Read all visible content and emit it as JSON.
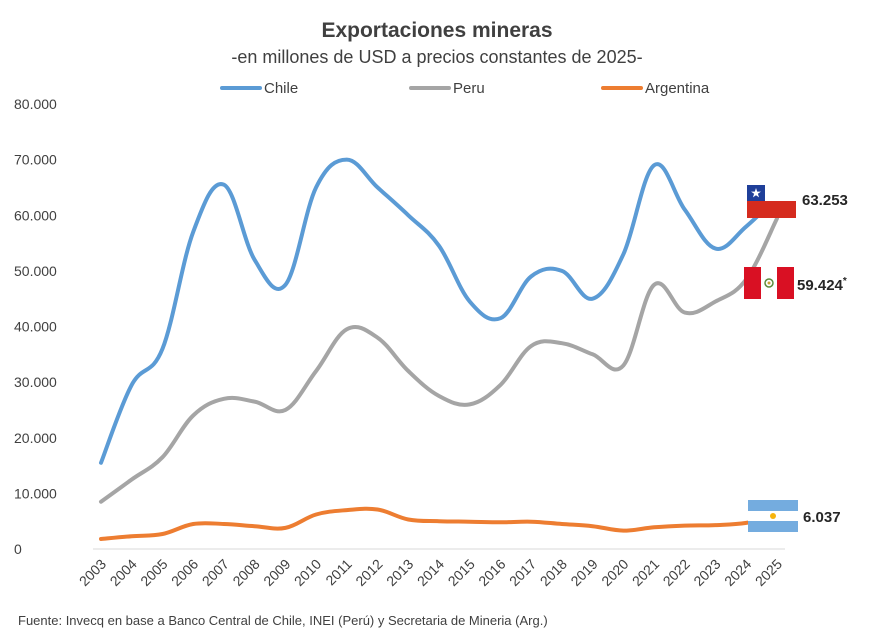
{
  "chart_data": {
    "type": "line",
    "title": "Exportaciones mineras",
    "subtitle": "-en millones de USD a precios constantes de 2025-",
    "x": [
      "2003",
      "2004",
      "2005",
      "2006",
      "2007",
      "2008",
      "2009",
      "2010",
      "2011",
      "2012",
      "2013",
      "2014",
      "2015",
      "2016",
      "2017",
      "2018",
      "2019",
      "2020",
      "2021",
      "2022",
      "2023",
      "2024",
      "2025"
    ],
    "ylim": [
      0,
      80000
    ],
    "yticks": [
      "0",
      "10.000",
      "20.000",
      "30.000",
      "40.000",
      "50.000",
      "60.000",
      "70.000",
      "80.000"
    ],
    "series": [
      {
        "name": "Chile",
        "color": "#5b9bd5",
        "values": [
          15500,
          29500,
          36000,
          57000,
          65500,
          52000,
          47500,
          65000,
          70000,
          65000,
          60000,
          54500,
          44500,
          41500,
          49000,
          50000,
          45000,
          53000,
          69000,
          61000,
          54000,
          58000,
          63253
        ]
      },
      {
        "name": "Peru",
        "color": "#a5a5a5",
        "values": [
          8500,
          12500,
          16500,
          24000,
          27000,
          26500,
          25000,
          32000,
          39500,
          38000,
          32000,
          27500,
          26000,
          29500,
          36500,
          37000,
          35000,
          33000,
          47500,
          42500,
          44500,
          48500,
          59424
        ]
      },
      {
        "name": "Argentina",
        "color": "#ed7d31",
        "values": [
          1800,
          2300,
          2700,
          4500,
          4500,
          4100,
          3800,
          6200,
          7000,
          7100,
          5300,
          5000,
          4900,
          4800,
          4900,
          4500,
          4100,
          3300,
          3900,
          4200,
          4300,
          4700,
          6037
        ]
      }
    ],
    "end_labels": [
      {
        "series": "Chile",
        "text": "63.253"
      },
      {
        "series": "Peru",
        "text": "59.424",
        "mark": "*"
      },
      {
        "series": "Argentina",
        "text": "6.037"
      }
    ],
    "legend": "top",
    "grid": false,
    "source": "Fuente: Invecq en base a Banco Central de Chile, INEI (Perú) y Secretaria de Mineria (Arg.)"
  },
  "flags": {
    "chile": {
      "blue": "#1f3f99",
      "white": "#ffffff",
      "red": "#d52b1e"
    },
    "peru": {
      "red": "#d91023",
      "white": "#ffffff"
    },
    "argentina": {
      "blue": "#74acdf",
      "white": "#ffffff",
      "sun": "#f6b40e"
    }
  }
}
